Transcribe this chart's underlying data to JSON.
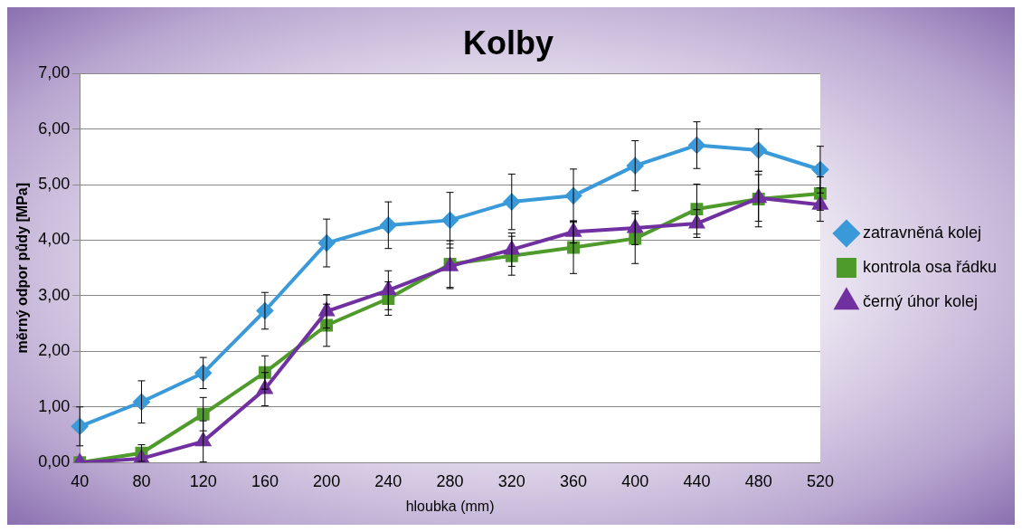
{
  "chart_data": {
    "type": "line",
    "title": "Kolby",
    "xlabel": "hloubka (mm)",
    "ylabel": "měrný odpor půdy [MPa]",
    "categories": [
      "40",
      "80",
      "120",
      "160",
      "200",
      "240",
      "280",
      "320",
      "360",
      "400",
      "440",
      "480",
      "520"
    ],
    "ylim": [
      0,
      7
    ],
    "yticks": [
      {
        "value": 0,
        "label": "0,00"
      },
      {
        "value": 1,
        "label": "1,00"
      },
      {
        "value": 2,
        "label": "2,00"
      },
      {
        "value": 3,
        "label": "3,00"
      },
      {
        "value": 4,
        "label": "4,00"
      },
      {
        "value": 5,
        "label": "5,00"
      },
      {
        "value": 6,
        "label": "6,00"
      },
      {
        "value": 7,
        "label": "7,00"
      }
    ],
    "grid": "y",
    "legend": "right",
    "series": [
      {
        "name": "zatravněná kolej",
        "color": "#3a9ad9",
        "marker": "diamond",
        "values": [
          0.65,
          1.09,
          1.61,
          2.73,
          3.95,
          4.27,
          4.36,
          4.69,
          4.8,
          5.34,
          5.71,
          5.62,
          5.27
        ],
        "errors": [
          0.35,
          0.38,
          0.28,
          0.33,
          0.43,
          0.42,
          0.5,
          0.5,
          0.48,
          0.45,
          0.42,
          0.38,
          0.42
        ]
      },
      {
        "name": "kontrola osa řádku",
        "color": "#4e9a2a",
        "marker": "square",
        "values": [
          0.0,
          0.17,
          0.87,
          1.62,
          2.47,
          2.95,
          3.57,
          3.72,
          3.87,
          4.03,
          4.56,
          4.74,
          4.84
        ],
        "errors": [
          null,
          0.15,
          0.3,
          0.3,
          0.38,
          0.3,
          0.42,
          0.35,
          0.47,
          0.45,
          0.45,
          0.5,
          0.3
        ]
      },
      {
        "name": "černý úhor kolej",
        "color": "#7030a0",
        "marker": "triangle",
        "values": [
          0.0,
          0.07,
          0.38,
          1.32,
          2.72,
          3.1,
          3.53,
          3.83,
          4.15,
          4.22,
          4.3,
          4.76,
          4.64
        ],
        "errors": [
          null,
          null,
          0.37,
          0.3,
          0.3,
          0.35,
          0.4,
          0.3,
          0.2,
          0.3,
          0.25,
          0.42,
          0.3
        ]
      }
    ]
  }
}
